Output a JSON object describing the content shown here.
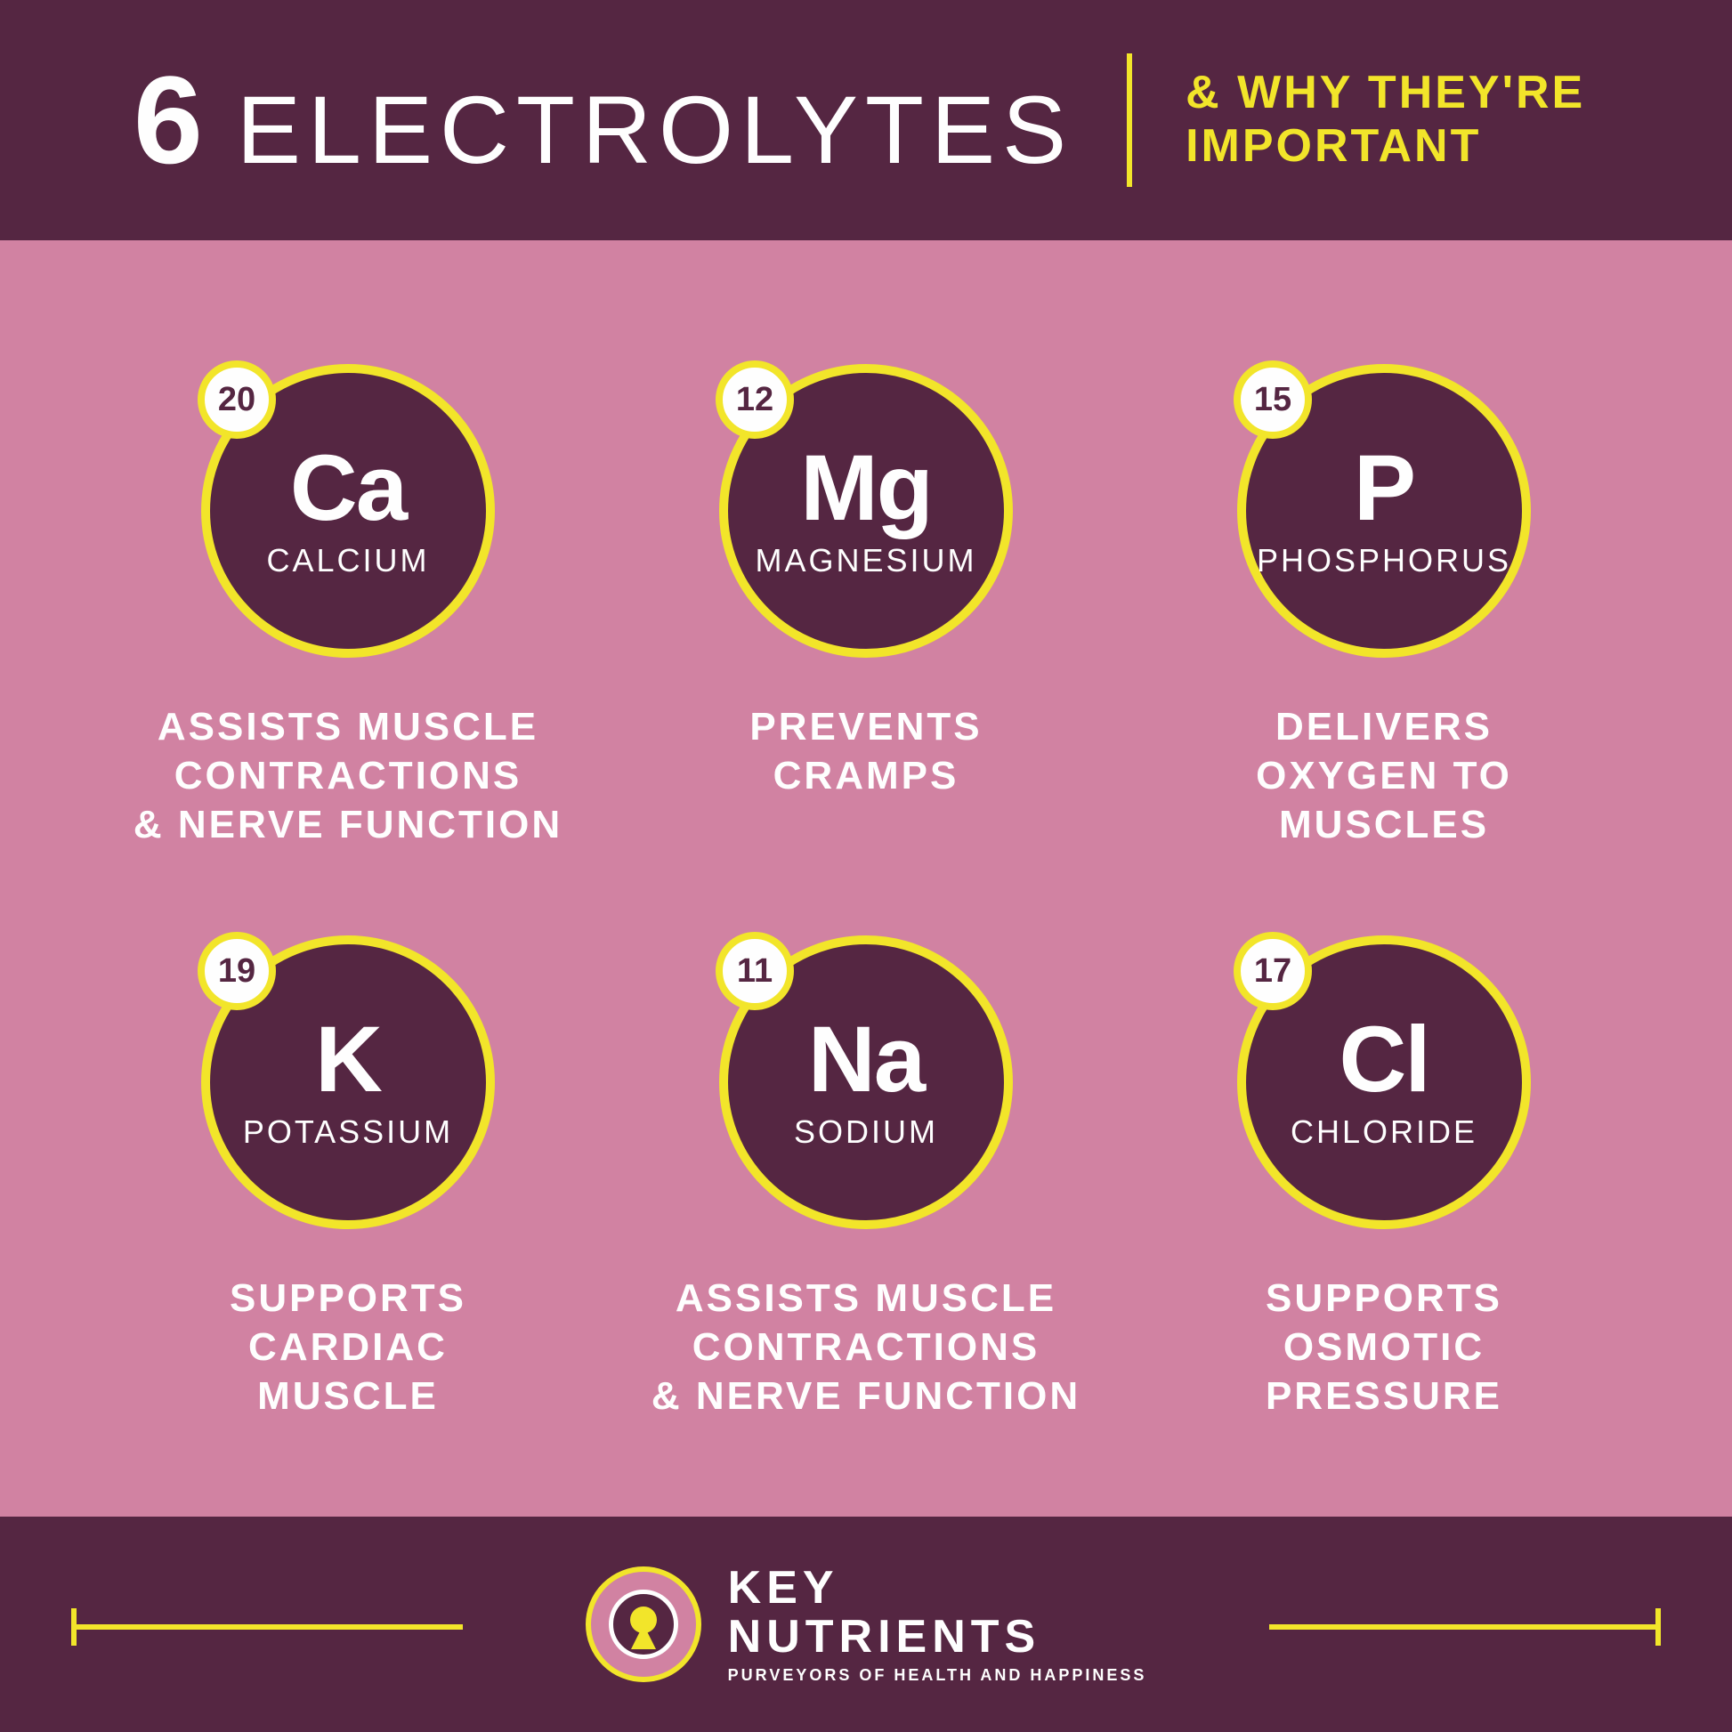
{
  "colors": {
    "background": "#d182a2",
    "dark": "#552642",
    "accent": "#f2e52a",
    "white": "#fefefe"
  },
  "header": {
    "number": "6",
    "title": "ELECTROLYTES",
    "subtitle_line1": "& WHY THEY'RE",
    "subtitle_line2": "IMPORTANT"
  },
  "elements": [
    {
      "atomic": "20",
      "symbol": "Ca",
      "name": "CALCIUM",
      "desc": "ASSISTS MUSCLE\nCONTRACTIONS\n& NERVE FUNCTION"
    },
    {
      "atomic": "12",
      "symbol": "Mg",
      "name": "MAGNESIUM",
      "desc": "PREVENTS\nCRAMPS"
    },
    {
      "atomic": "15",
      "symbol": "P",
      "name": "PHOSPHORUS",
      "desc": "DELIVERS\nOXYGEN TO\nMUSCLES"
    },
    {
      "atomic": "19",
      "symbol": "K",
      "name": "POTASSIUM",
      "desc": "SUPPORTS\nCARDIAC\nMUSCLE"
    },
    {
      "atomic": "11",
      "symbol": "Na",
      "name": "SODIUM",
      "desc": "ASSISTS MUSCLE\nCONTRACTIONS\n& NERVE FUNCTION"
    },
    {
      "atomic": "17",
      "symbol": "Cl",
      "name": "CHLORIDE",
      "desc": "SUPPORTS\nOSMOTIC\nPRESSURE"
    }
  ],
  "footer": {
    "brand_line1": "KEY",
    "brand_line2": "NUTRIENTS",
    "tagline": "PURVEYORS OF HEALTH AND HAPPINESS"
  }
}
